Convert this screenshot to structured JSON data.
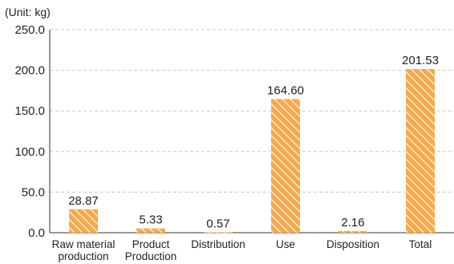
{
  "chart_data": {
    "type": "bar",
    "unit_label": "(Unit: kg)",
    "categories": [
      [
        "Raw material",
        "production"
      ],
      [
        "Product",
        "Production"
      ],
      [
        "Distribution"
      ],
      [
        "Use"
      ],
      [
        "Disposition"
      ],
      [
        "Total"
      ]
    ],
    "values": [
      28.87,
      5.33,
      0.57,
      164.6,
      2.16,
      201.53
    ],
    "value_labels": [
      "28.87",
      "5.33",
      "0.57",
      "164.60",
      "2.16",
      "201.53"
    ],
    "yticks": [
      "0.0",
      "50.0",
      "100.0",
      "150.0",
      "200.0",
      "250.0"
    ],
    "ylim": [
      0,
      250
    ],
    "grid": true,
    "colors": {
      "bar": "#f7a84a",
      "hatch": "#ffffff"
    }
  }
}
